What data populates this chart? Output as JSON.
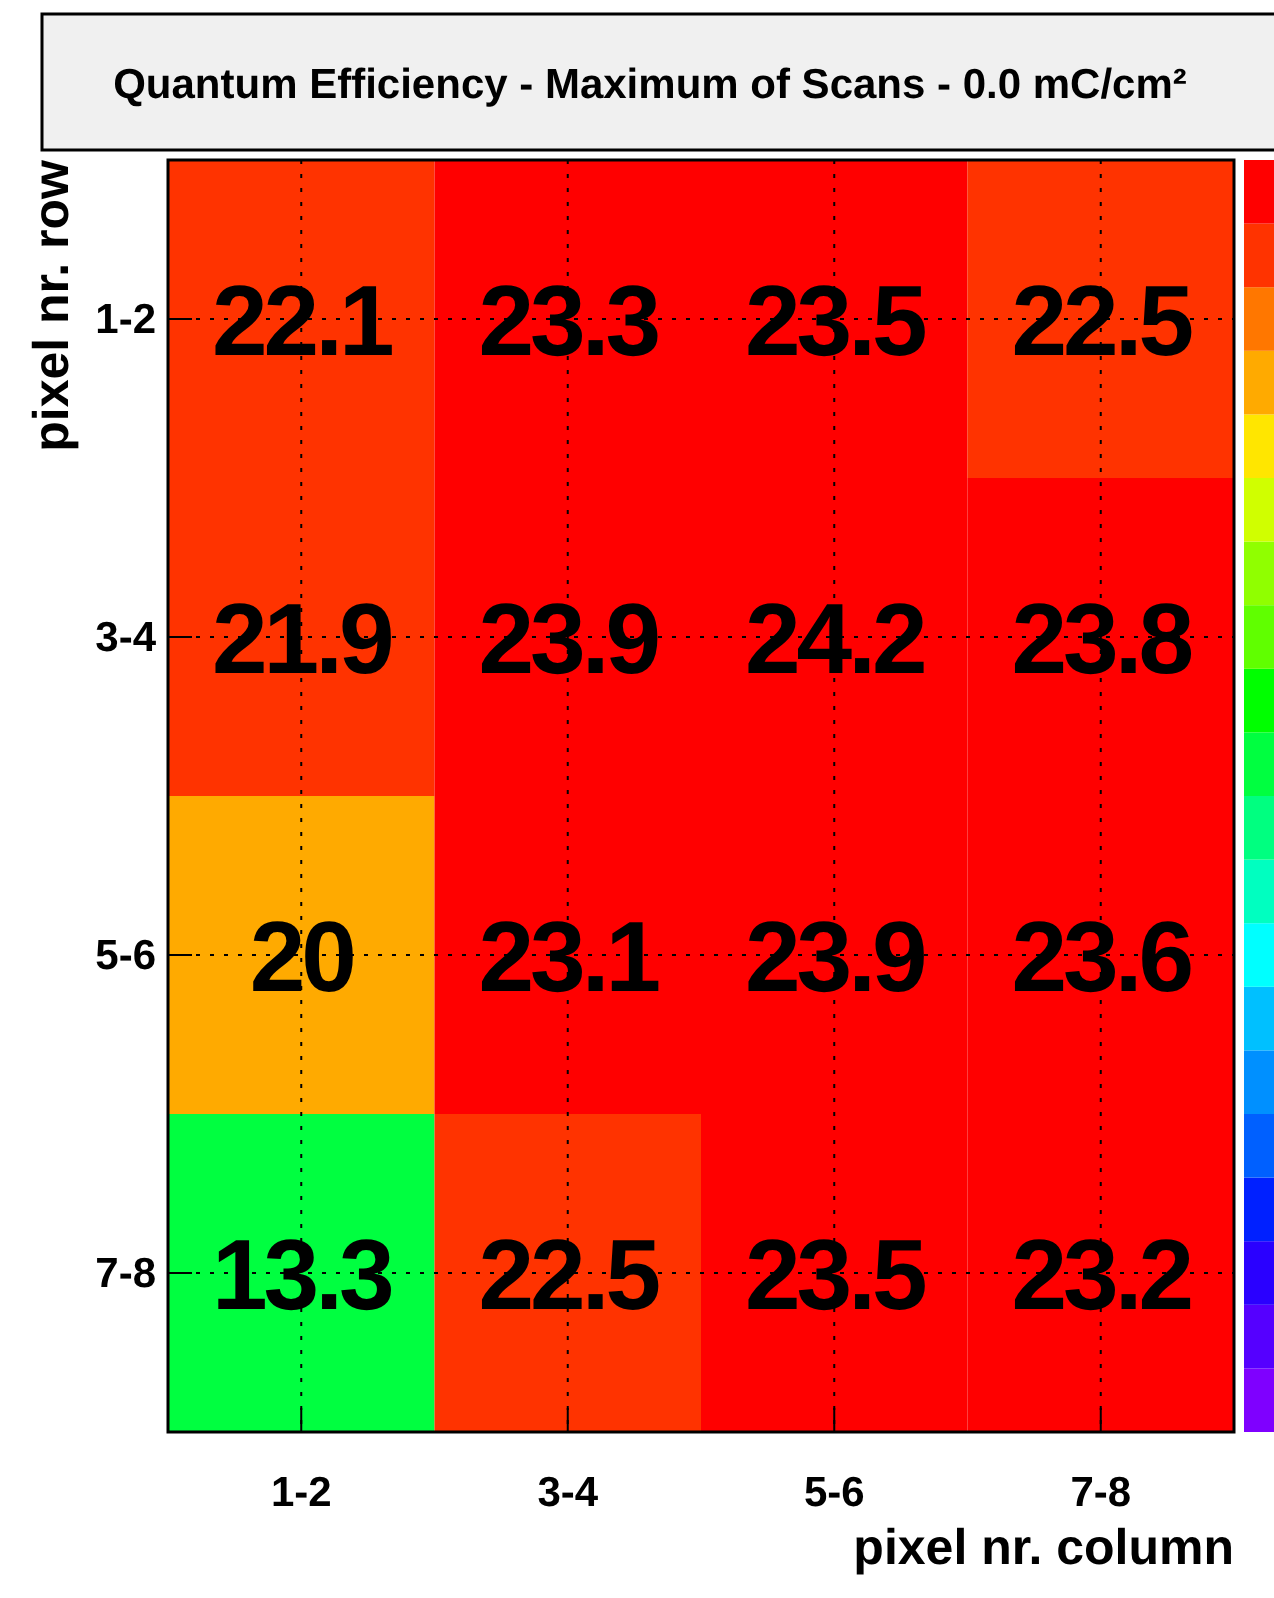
{
  "chart_data": {
    "type": "heatmap",
    "title": "Quantum Efficiency - Maximum of Scans - 0.0 mC/cm²",
    "xlabel": "pixel nr. column",
    "ylabel": "pixel nr. row",
    "categories": [
      "1-2",
      "3-4",
      "5-6",
      "7-8"
    ],
    "y_categories": [
      "1-2",
      "3-4",
      "5-6",
      "7-8"
    ],
    "cells": [
      [
        22.1,
        23.3,
        23.5,
        22.5
      ],
      [
        21.9,
        23.9,
        24.2,
        23.8
      ],
      [
        20,
        23.1,
        23.9,
        23.6
      ],
      [
        13.3,
        22.5,
        23.5,
        23.2
      ]
    ],
    "data_labels": true,
    "grid": true
  }
}
